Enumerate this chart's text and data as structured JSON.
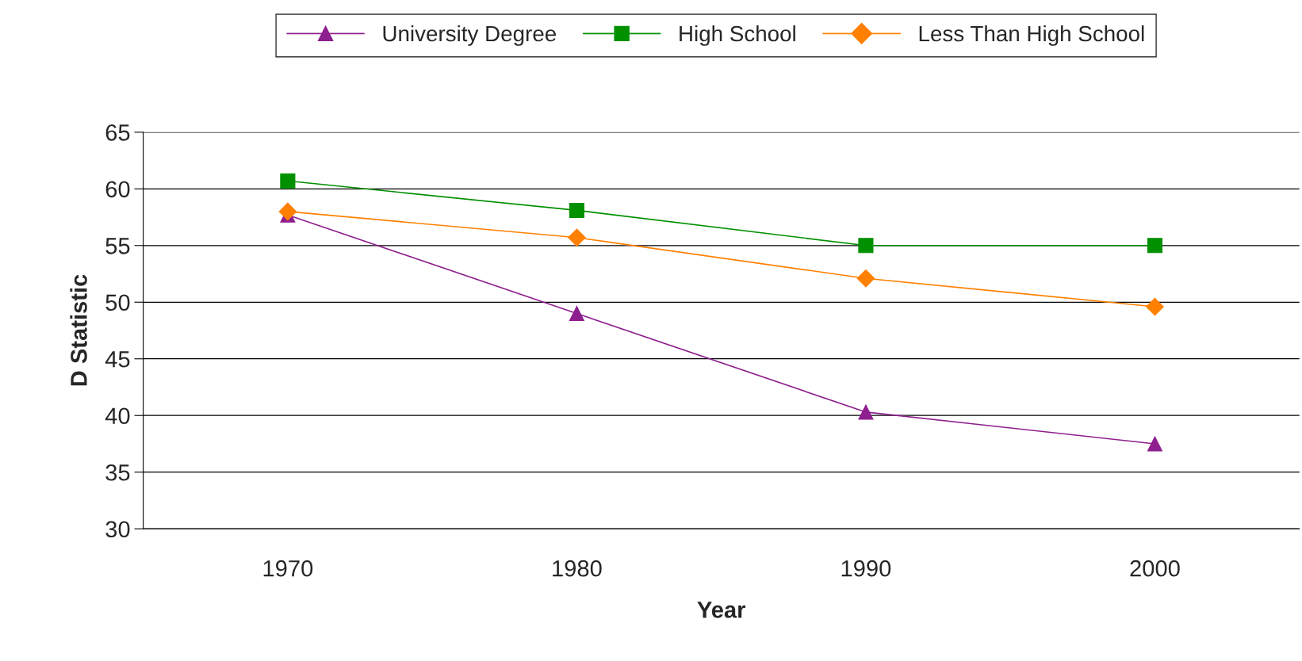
{
  "chart_data": {
    "type": "line",
    "xlabel": "Year",
    "ylabel": "D Statistic",
    "categories": [
      "1970",
      "1980",
      "1990",
      "2000"
    ],
    "series": [
      {
        "name": "University Degree",
        "color": "#8e1f8e",
        "marker": "triangle",
        "values": [
          57.7,
          49.0,
          40.3,
          37.5
        ]
      },
      {
        "name": "High School",
        "color": "#009000",
        "marker": "square",
        "values": [
          60.7,
          58.1,
          55.0,
          55.0
        ]
      },
      {
        "name": "Less Than High School",
        "color": "#ff8000",
        "marker": "diamond",
        "values": [
          58.0,
          55.7,
          52.1,
          49.6
        ]
      }
    ],
    "ylim": [
      30,
      65
    ],
    "yticks": [
      30,
      35,
      40,
      45,
      50,
      55,
      60,
      65
    ],
    "grid": "y",
    "legend": "top",
    "line_style": "solid"
  }
}
